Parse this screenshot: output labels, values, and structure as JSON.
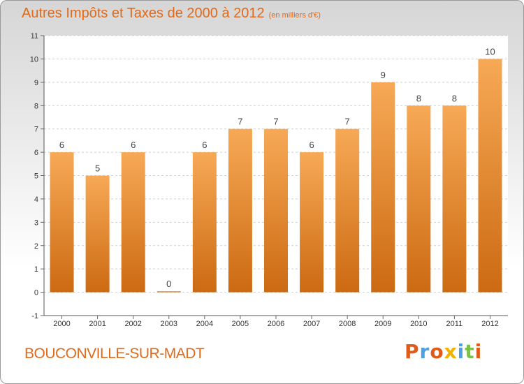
{
  "header": {
    "title": "Autres Impôts et Taxes de 2000 à 2012",
    "unit": "(en milliers d'€)"
  },
  "footer": {
    "commune": "BOUCONVILLE-SUR-MADT",
    "logo_text": "Proxiti"
  },
  "colors": {
    "bar_top": "#f7a956",
    "bar_bottom": "#cc6a12",
    "accent": "#e06a1a",
    "logo_letters": [
      "#e05a1a",
      "#4aa3e0",
      "#e05a1a",
      "#f0b400",
      "#4aa3e0",
      "#7cc04a",
      "#e05a1a"
    ]
  },
  "chart_data": {
    "type": "bar",
    "categories": [
      "2000",
      "2001",
      "2002",
      "2003",
      "2004",
      "2005",
      "2006",
      "2007",
      "2008",
      "2009",
      "2010",
      "2011",
      "2012"
    ],
    "values": [
      6,
      5,
      6,
      0,
      6,
      7,
      7,
      6,
      7,
      9,
      8,
      8,
      10
    ],
    "data_labels": [
      "6",
      "5",
      "6",
      "0",
      "6",
      "7",
      "7",
      "6",
      "7",
      "9",
      "8",
      "8",
      "10"
    ],
    "ylim": [
      -1,
      11
    ],
    "yticks": [
      -1,
      0,
      1,
      2,
      3,
      4,
      5,
      6,
      7,
      8,
      9,
      10,
      11
    ],
    "grid": "horizontal-dashed",
    "legend": "none"
  }
}
